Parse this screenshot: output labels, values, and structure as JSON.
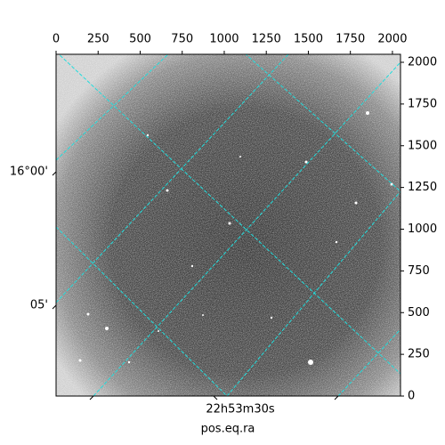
{
  "chart_data": {
    "type": "image",
    "xlabel": "pos.eq.ra",
    "xlim": [
      0,
      2048
    ],
    "ylim": [
      0,
      2048
    ],
    "xticks": [
      0,
      250,
      500,
      750,
      1000,
      1250,
      1500,
      1750,
      2000
    ],
    "yticks": [
      0,
      250,
      500,
      750,
      1000,
      1250,
      1500,
      1750,
      2000
    ],
    "dec_labels": [
      "16°00'",
      "05'"
    ],
    "ra_labels": [
      "22h53m30s"
    ]
  }
}
